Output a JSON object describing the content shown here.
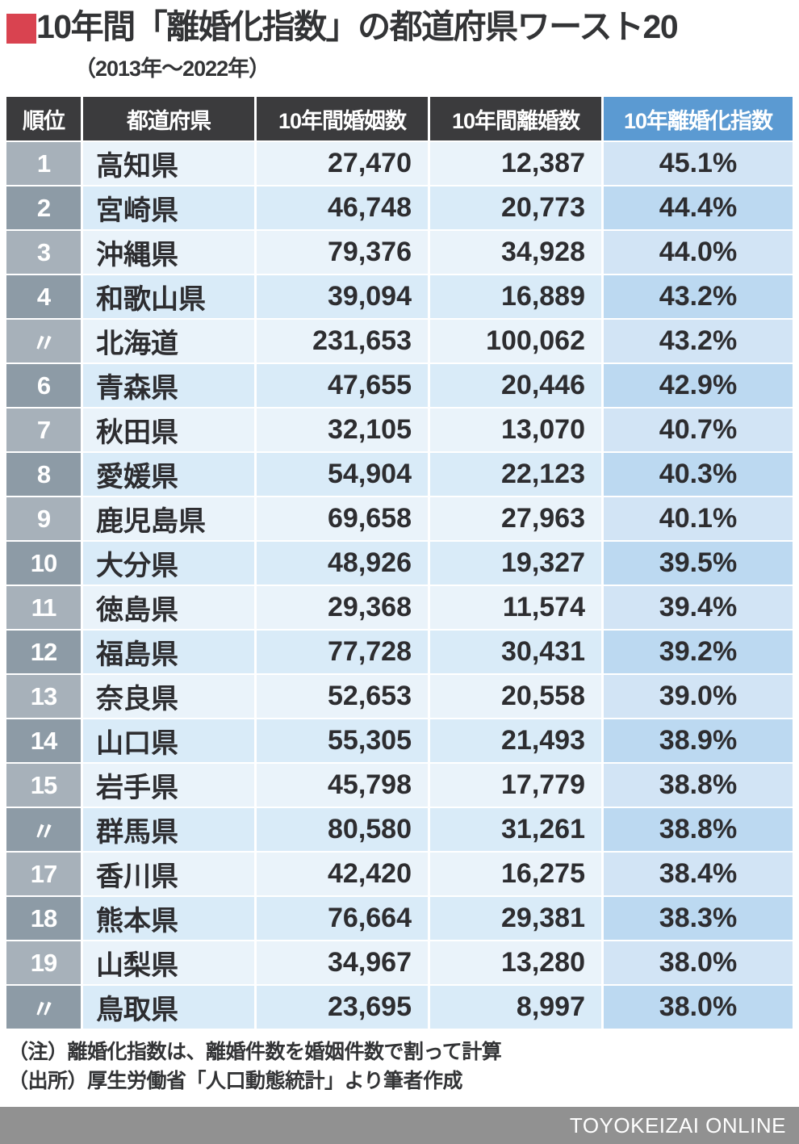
{
  "page": {
    "title": "10年間「離婚化指数」の都道府県ワースト20",
    "subtitle": "（2013年〜2022年）",
    "note1": "（注）離婚化指数は、離婚件数を婚姻件数で割って計算",
    "note2": "（出所）厚生労働省「人口動態統計」より筆者作成",
    "footer_brand": "TOYOKEIZAI ONLINE"
  },
  "colors": {
    "accent_red": "#d94350",
    "header_dark": "#3b3b3d",
    "header_blue": "#5b9ad2",
    "rank_cell_odd": "#a7b1ba",
    "rank_cell_even": "#8d9ba6",
    "row_odd": "#eaf3fa",
    "row_even": "#d9ebf8",
    "index_cell_odd": "#d2e4f5",
    "index_cell_even": "#bcd9f1",
    "footer_gray": "#919191"
  },
  "chart_data": {
    "type": "table",
    "title": "10年間「離婚化指数」の都道府県ワースト20",
    "subtitle": "（2013年〜2022年）",
    "columns": [
      "順位",
      "都道府県",
      "10年間婚姻数",
      "10年間離婚数",
      "10年離婚化指数"
    ],
    "rows": [
      {
        "rank": "1",
        "prefecture": "高知県",
        "marriages": "27,470",
        "divorces": "12,387",
        "index": "45.1%"
      },
      {
        "rank": "2",
        "prefecture": "宮崎県",
        "marriages": "46,748",
        "divorces": "20,773",
        "index": "44.4%"
      },
      {
        "rank": "3",
        "prefecture": "沖縄県",
        "marriages": "79,376",
        "divorces": "34,928",
        "index": "44.0%"
      },
      {
        "rank": "4",
        "prefecture": "和歌山県",
        "marriages": "39,094",
        "divorces": "16,889",
        "index": "43.2%"
      },
      {
        "rank": "〃",
        "prefecture": "北海道",
        "marriages": "231,653",
        "divorces": "100,062",
        "index": "43.2%"
      },
      {
        "rank": "6",
        "prefecture": "青森県",
        "marriages": "47,655",
        "divorces": "20,446",
        "index": "42.9%"
      },
      {
        "rank": "7",
        "prefecture": "秋田県",
        "marriages": "32,105",
        "divorces": "13,070",
        "index": "40.7%"
      },
      {
        "rank": "8",
        "prefecture": "愛媛県",
        "marriages": "54,904",
        "divorces": "22,123",
        "index": "40.3%"
      },
      {
        "rank": "9",
        "prefecture": "鹿児島県",
        "marriages": "69,658",
        "divorces": "27,963",
        "index": "40.1%"
      },
      {
        "rank": "10",
        "prefecture": "大分県",
        "marriages": "48,926",
        "divorces": "19,327",
        "index": "39.5%"
      },
      {
        "rank": "11",
        "prefecture": "徳島県",
        "marriages": "29,368",
        "divorces": "11,574",
        "index": "39.4%"
      },
      {
        "rank": "12",
        "prefecture": "福島県",
        "marriages": "77,728",
        "divorces": "30,431",
        "index": "39.2%"
      },
      {
        "rank": "13",
        "prefecture": "奈良県",
        "marriages": "52,653",
        "divorces": "20,558",
        "index": "39.0%"
      },
      {
        "rank": "14",
        "prefecture": "山口県",
        "marriages": "55,305",
        "divorces": "21,493",
        "index": "38.9%"
      },
      {
        "rank": "15",
        "prefecture": "岩手県",
        "marriages": "45,798",
        "divorces": "17,779",
        "index": "38.8%"
      },
      {
        "rank": "〃",
        "prefecture": "群馬県",
        "marriages": "80,580",
        "divorces": "31,261",
        "index": "38.8%"
      },
      {
        "rank": "17",
        "prefecture": "香川県",
        "marriages": "42,420",
        "divorces": "16,275",
        "index": "38.4%"
      },
      {
        "rank": "18",
        "prefecture": "熊本県",
        "marriages": "76,664",
        "divorces": "29,381",
        "index": "38.3%"
      },
      {
        "rank": "19",
        "prefecture": "山梨県",
        "marriages": "34,967",
        "divorces": "13,280",
        "index": "38.0%"
      },
      {
        "rank": "〃",
        "prefecture": "鳥取県",
        "marriages": "23,695",
        "divorces": "8,997",
        "index": "38.0%"
      }
    ]
  }
}
